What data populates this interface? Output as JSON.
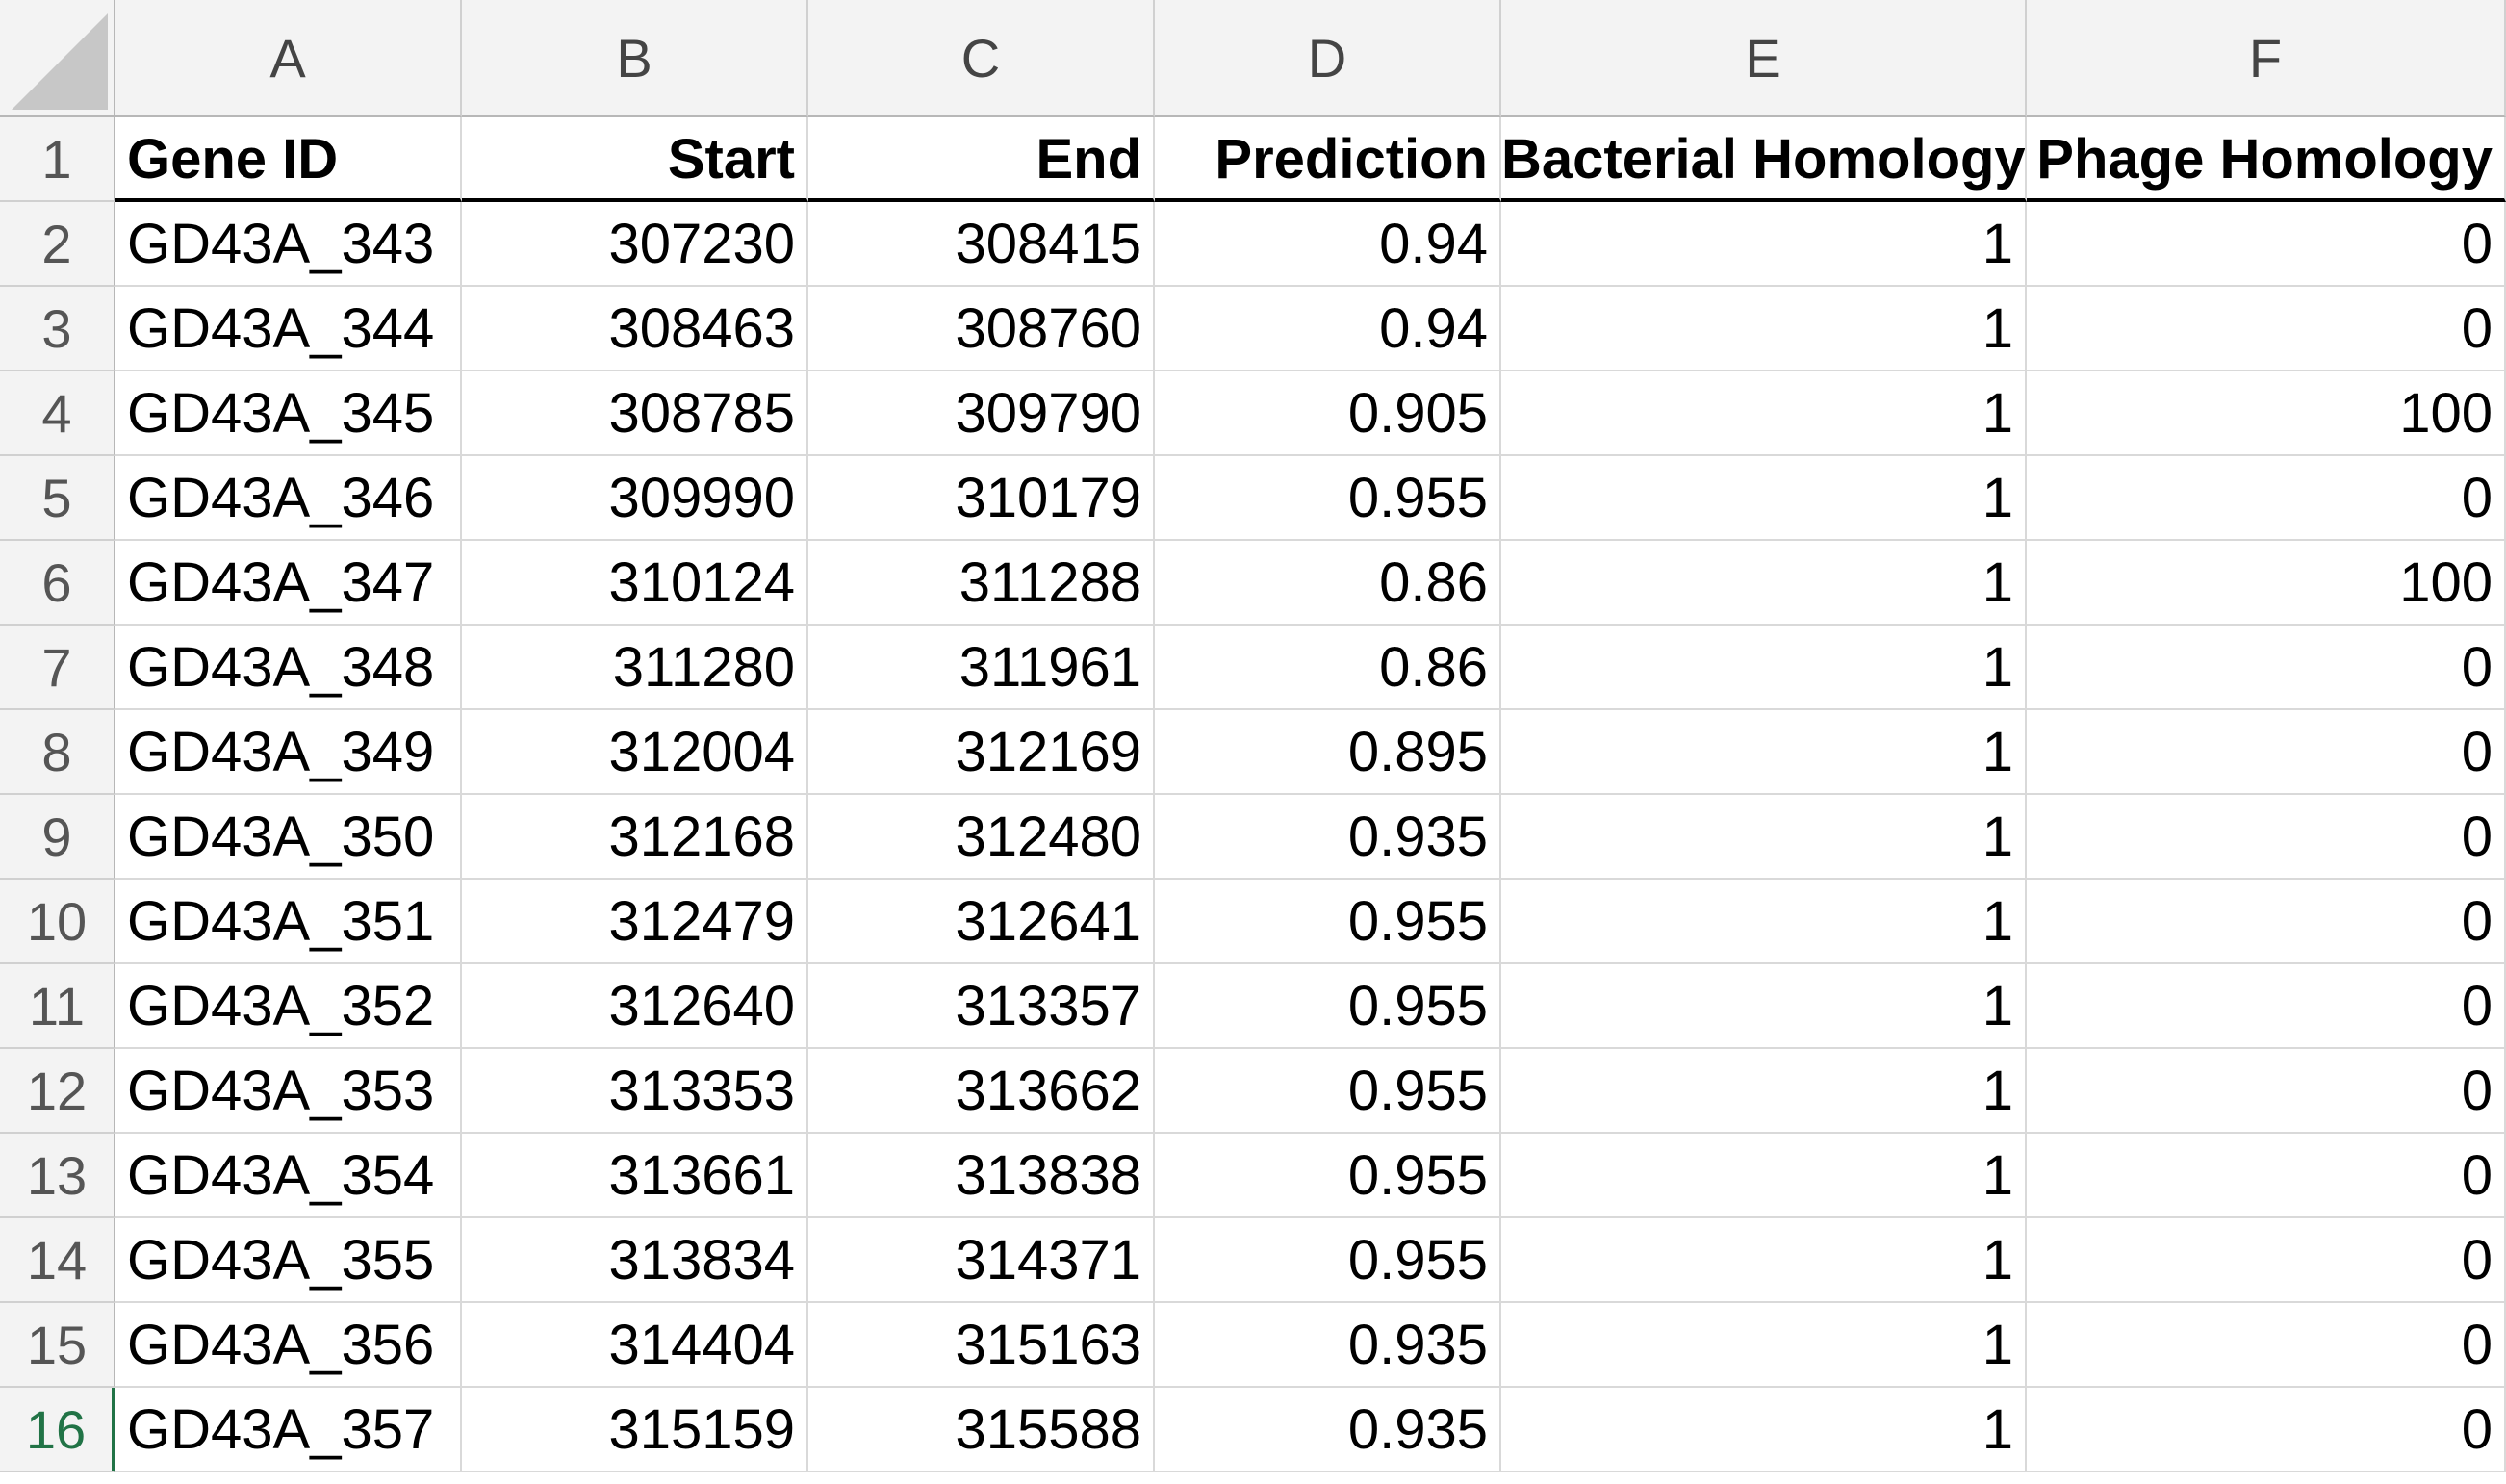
{
  "columns": [
    "A",
    "B",
    "C",
    "D",
    "E",
    "F"
  ],
  "header_row": {
    "row_number": "1",
    "cells": [
      "Gene ID",
      "Start",
      "End",
      "Prediction",
      "Bacterial Homology",
      "Phage Homology"
    ]
  },
  "rows": [
    {
      "row_number": "2",
      "cells": [
        "GD43A_343",
        "307230",
        "308415",
        "0.94",
        "1",
        "0"
      ]
    },
    {
      "row_number": "3",
      "cells": [
        "GD43A_344",
        "308463",
        "308760",
        "0.94",
        "1",
        "0"
      ]
    },
    {
      "row_number": "4",
      "cells": [
        "GD43A_345",
        "308785",
        "309790",
        "0.905",
        "1",
        "100"
      ]
    },
    {
      "row_number": "5",
      "cells": [
        "GD43A_346",
        "309990",
        "310179",
        "0.955",
        "1",
        "0"
      ]
    },
    {
      "row_number": "6",
      "cells": [
        "GD43A_347",
        "310124",
        "311288",
        "0.86",
        "1",
        "100"
      ]
    },
    {
      "row_number": "7",
      "cells": [
        "GD43A_348",
        "311280",
        "311961",
        "0.86",
        "1",
        "0"
      ]
    },
    {
      "row_number": "8",
      "cells": [
        "GD43A_349",
        "312004",
        "312169",
        "0.895",
        "1",
        "0"
      ]
    },
    {
      "row_number": "9",
      "cells": [
        "GD43A_350",
        "312168",
        "312480",
        "0.935",
        "1",
        "0"
      ]
    },
    {
      "row_number": "10",
      "cells": [
        "GD43A_351",
        "312479",
        "312641",
        "0.955",
        "1",
        "0"
      ]
    },
    {
      "row_number": "11",
      "cells": [
        "GD43A_352",
        "312640",
        "313357",
        "0.955",
        "1",
        "0"
      ]
    },
    {
      "row_number": "12",
      "cells": [
        "GD43A_353",
        "313353",
        "313662",
        "0.955",
        "1",
        "0"
      ]
    },
    {
      "row_number": "13",
      "cells": [
        "GD43A_354",
        "313661",
        "313838",
        "0.955",
        "1",
        "0"
      ]
    },
    {
      "row_number": "14",
      "cells": [
        "GD43A_355",
        "313834",
        "314371",
        "0.955",
        "1",
        "0"
      ]
    },
    {
      "row_number": "15",
      "cells": [
        "GD43A_356",
        "314404",
        "315163",
        "0.935",
        "1",
        "0"
      ]
    },
    {
      "row_number": "16",
      "cells": [
        "GD43A_357",
        "315159",
        "315588",
        "0.935",
        "1",
        "0"
      ]
    }
  ],
  "active_row": "16",
  "colors": {
    "header_background": "#f3f3f3",
    "gridline": "#d9d9d9",
    "active_row_accent": "#217346"
  }
}
